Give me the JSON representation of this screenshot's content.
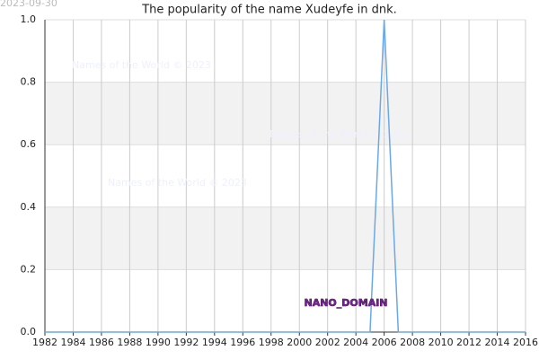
{
  "chart_data": {
    "type": "line",
    "title": "The popularity of the name Xudeyfe in dnk.",
    "date": "2023-09-30",
    "watermarks": [
      "Names of the World © 2023",
      "Names of the World © 2023",
      "Names of the World © 2023"
    ],
    "annotation": "NANO_DOMAIN",
    "x": [
      1982,
      1983,
      1984,
      1985,
      1986,
      1987,
      1988,
      1989,
      1990,
      1991,
      1992,
      1993,
      1994,
      1995,
      1996,
      1997,
      1998,
      1999,
      2000,
      2001,
      2002,
      2003,
      2004,
      2005,
      2006,
      2007,
      2008,
      2009,
      2010,
      2011,
      2012,
      2013,
      2014,
      2015,
      2016
    ],
    "series": [
      {
        "color": "#6aa8e8",
        "values": [
          0,
          0,
          0,
          0,
          0,
          0,
          0,
          0,
          0,
          0,
          0,
          0,
          0,
          0,
          0,
          0,
          0,
          0,
          0,
          0,
          0,
          0,
          0,
          0,
          1,
          0,
          0,
          0,
          0,
          0,
          0,
          0,
          0,
          0,
          0
        ]
      }
    ],
    "xlim": [
      1982,
      2016
    ],
    "xticks": [
      1982,
      1984,
      1986,
      1988,
      1990,
      1992,
      1994,
      1996,
      1998,
      2000,
      2002,
      2004,
      2006,
      2008,
      2010,
      2012,
      2014,
      2016
    ],
    "ylim": [
      0,
      1
    ],
    "yticks": [
      {
        "value": 0,
        "label": "0.0"
      },
      0.2,
      0.4,
      0.6,
      0.8,
      {
        "value": 1,
        "label": "1.0"
      }
    ],
    "grid": true
  }
}
